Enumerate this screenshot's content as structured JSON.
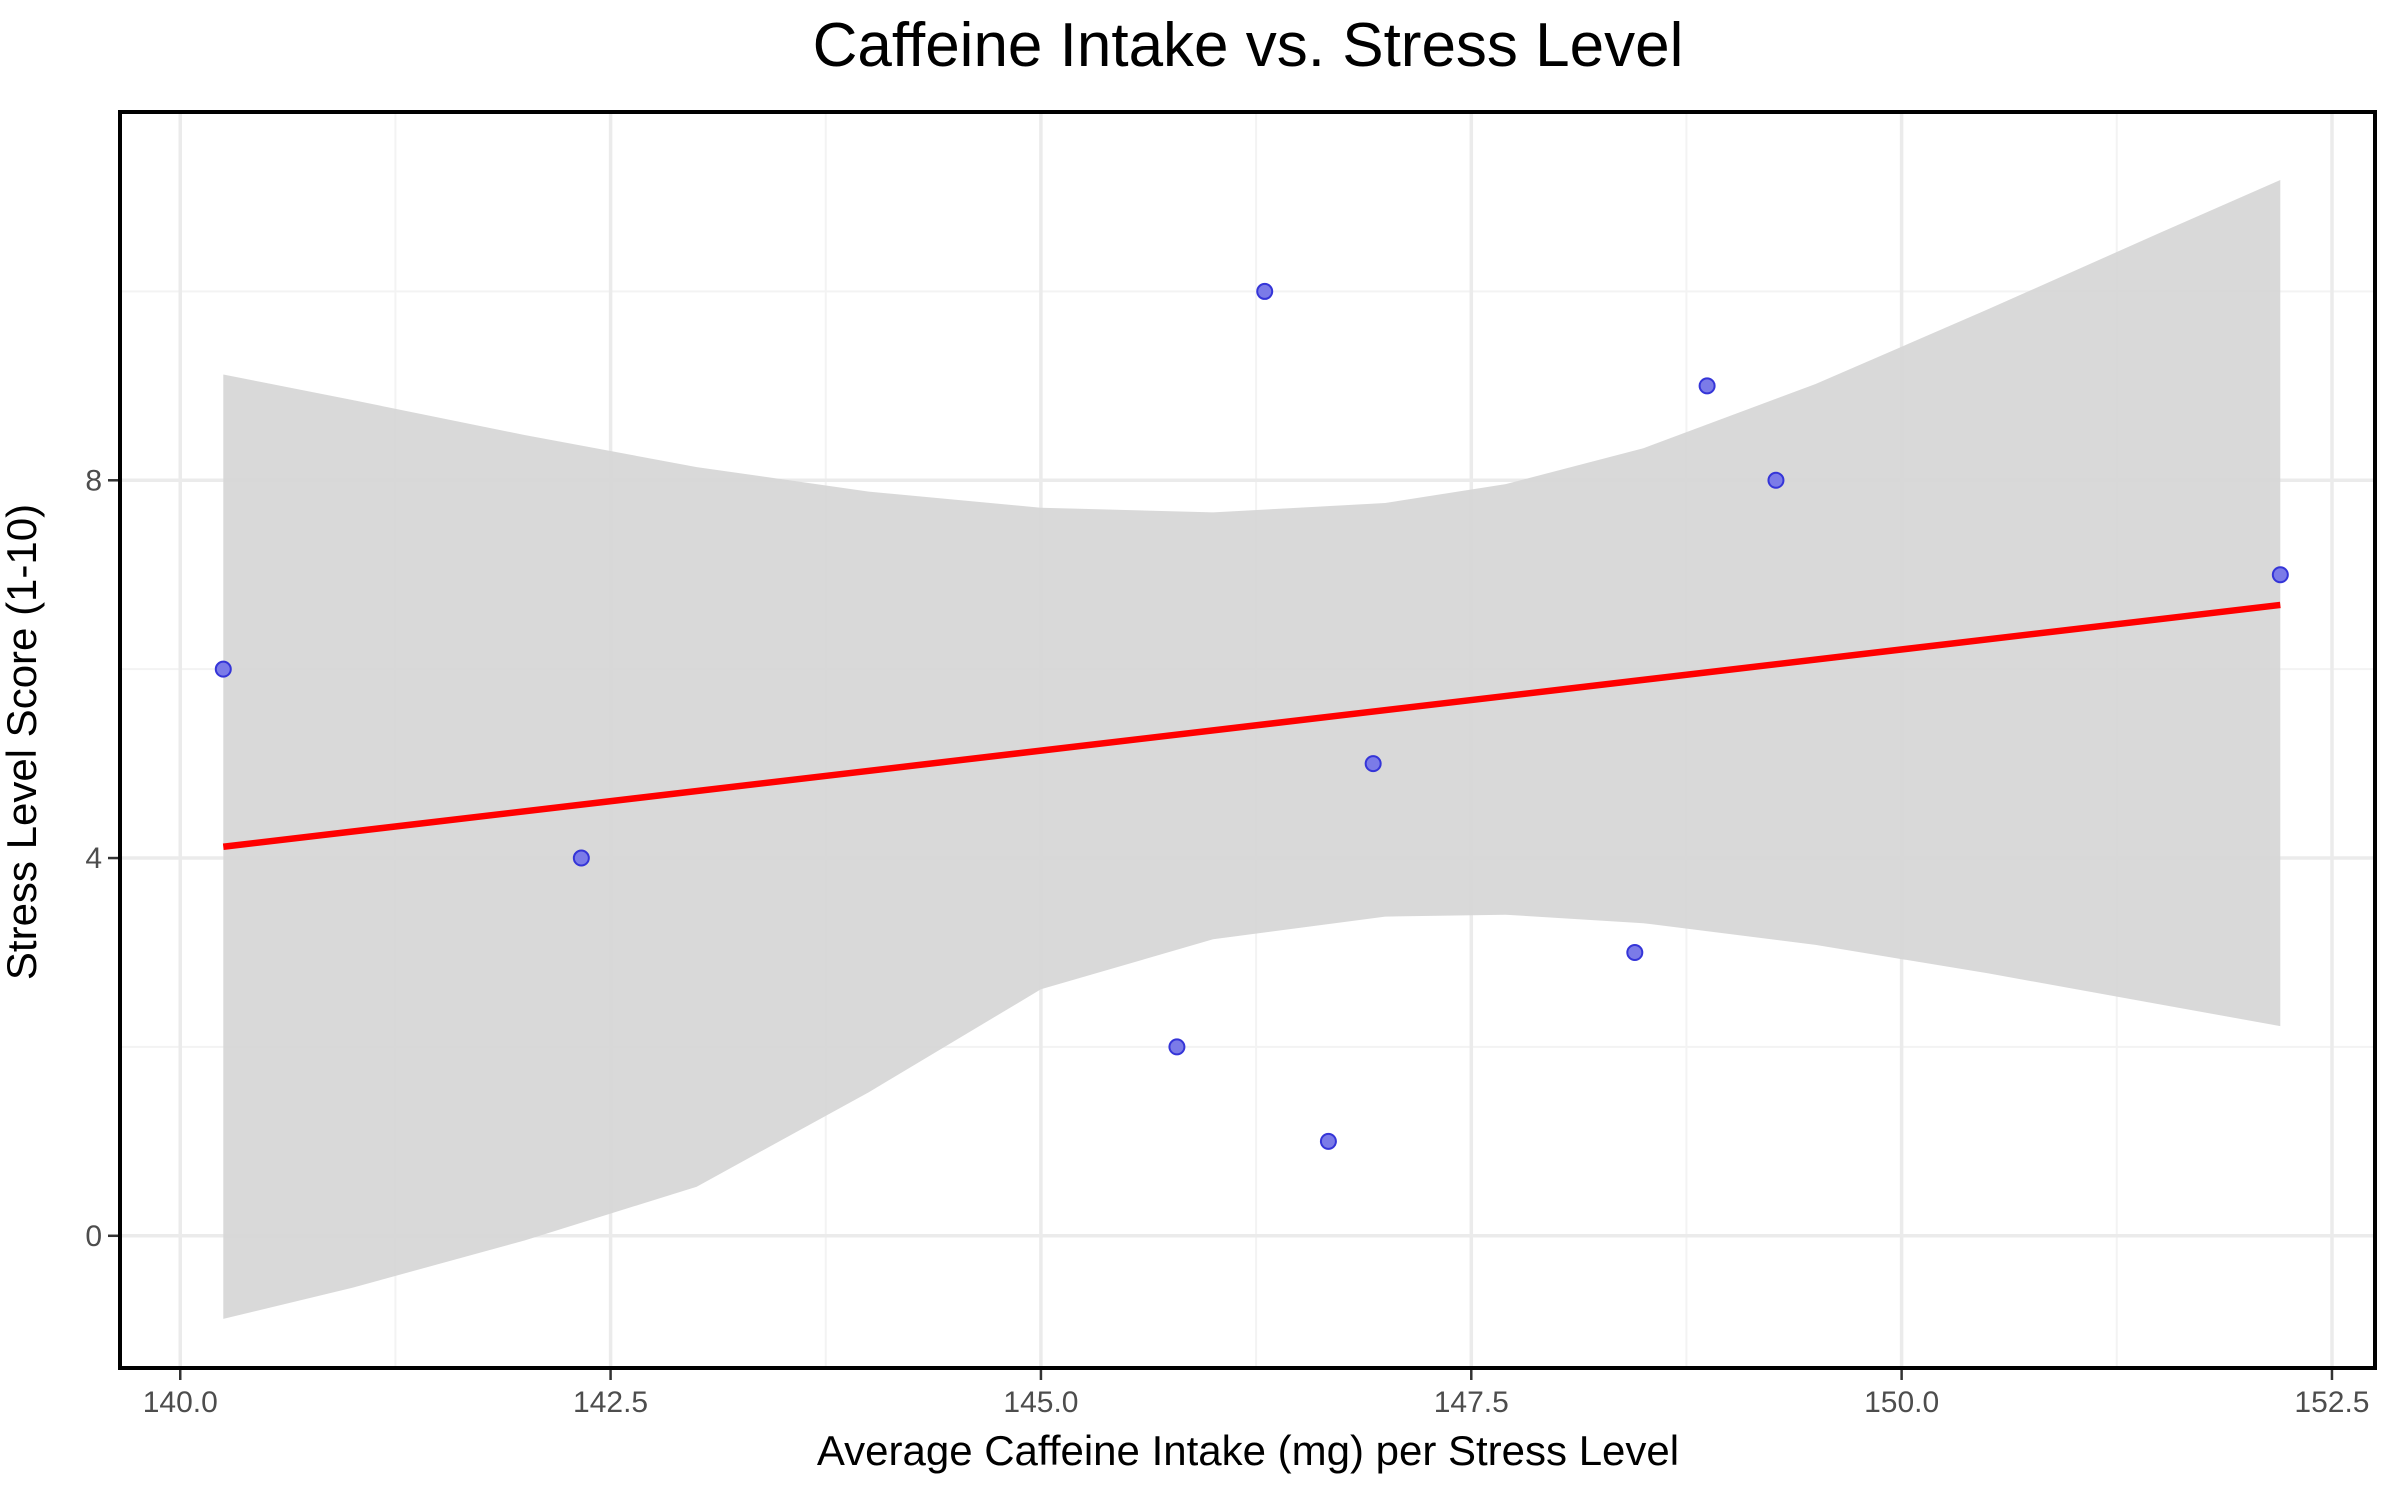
{
  "chart_data": {
    "type": "scatter",
    "title": "Caffeine Intake vs. Stress Level",
    "xlabel": "Average Caffeine Intake (mg) per Stress Level",
    "ylabel": "Stress Level Score (1-10)",
    "xlim": [
      139.65,
      152.75
    ],
    "ylim": [
      -1.4,
      11.9
    ],
    "x_ticks": [
      140.0,
      142.5,
      145.0,
      147.5,
      150.0,
      152.5
    ],
    "x_tick_labels": [
      "140.0",
      "142.5",
      "145.0",
      "147.5",
      "150.0",
      "152.5"
    ],
    "x_minor_ticks": [
      141.25,
      143.75,
      146.25,
      148.75,
      151.25
    ],
    "y_ticks": [
      0,
      4,
      8
    ],
    "y_tick_labels": [
      "0",
      "4",
      "8"
    ],
    "y_minor_ticks": [
      2,
      6,
      10
    ],
    "grid": true,
    "points": [
      {
        "x": 140.25,
        "y": 6
      },
      {
        "x": 142.33,
        "y": 4
      },
      {
        "x": 145.79,
        "y": 2
      },
      {
        "x": 146.3,
        "y": 10
      },
      {
        "x": 146.67,
        "y": 1
      },
      {
        "x": 146.93,
        "y": 5
      },
      {
        "x": 148.45,
        "y": 3
      },
      {
        "x": 148.87,
        "y": 9
      },
      {
        "x": 149.27,
        "y": 8
      },
      {
        "x": 152.2,
        "y": 7
      }
    ],
    "trend_line": {
      "x": [
        140.25,
        152.2
      ],
      "y": [
        4.12,
        6.68
      ]
    },
    "confidence_band": {
      "x": [
        140.25,
        141.0,
        142.0,
        143.0,
        144.0,
        145.0,
        146.0,
        147.0,
        147.7,
        148.5,
        149.5,
        150.5,
        151.5,
        152.2
      ],
      "upper": [
        9.12,
        8.85,
        8.48,
        8.14,
        7.88,
        7.71,
        7.66,
        7.76,
        7.96,
        8.34,
        9.02,
        9.81,
        10.62,
        11.18
      ],
      "lower": [
        -0.88,
        -0.55,
        -0.05,
        0.52,
        1.52,
        2.61,
        3.14,
        3.38,
        3.4,
        3.31,
        3.08,
        2.78,
        2.45,
        2.22
      ]
    },
    "colors": {
      "points": "#7b7be8",
      "points_stroke": "#3535d8",
      "trend_line": "#ff0000",
      "band": "#d6d6d6",
      "grid_major": "#ebebeb",
      "grid_minor": "#f3f3f3",
      "panel_border": "#000000"
    }
  }
}
